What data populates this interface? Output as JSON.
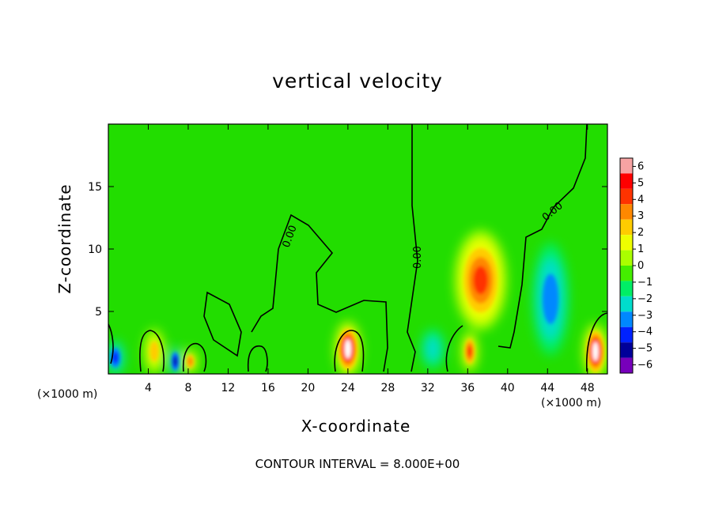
{
  "chart_data": {
    "type": "heatmap",
    "title": "vertical velocity",
    "xlabel": "X-coordinate",
    "ylabel": "Z-coordinate",
    "x_unit_left": "(×1000 m)",
    "x_unit_right": "(×1000 m)",
    "footer": "CONTOUR INTERVAL = 8.000E+00",
    "xlim": [
      0,
      50
    ],
    "ylim": [
      0,
      20
    ],
    "x_ticks": [
      4,
      8,
      12,
      16,
      20,
      24,
      28,
      32,
      36,
      40,
      44,
      48
    ],
    "y_ticks": [
      5,
      10,
      15
    ],
    "colorbar": {
      "ticks": [
        "6",
        "5",
        "4",
        "3",
        "2",
        "1",
        "0",
        "−1",
        "−2",
        "−3",
        "−4",
        "−5",
        "−6"
      ],
      "colors": [
        "#f7a3a3",
        "#ff0000",
        "#ff3300",
        "#ff8800",
        "#ffcc00",
        "#eeff00",
        "#aaff00",
        "#44ee00",
        "#00ee66",
        "#00ddcc",
        "#0088ff",
        "#0022ff",
        "#000099",
        "#7700bb"
      ]
    },
    "contour_level": "0.00",
    "features": [
      {
        "x": 24.0,
        "z": 2.0,
        "value": 6.5,
        "rx": 1.3,
        "rz": 2.2
      },
      {
        "x": 48.8,
        "z": 1.8,
        "value": 6.5,
        "rx": 1.2,
        "rz": 2.2
      },
      {
        "x": 37.3,
        "z": 7.5,
        "value": 4.5,
        "rx": 2.6,
        "rz": 4.0
      },
      {
        "x": 36.2,
        "z": 1.8,
        "value": 5.0,
        "rx": 0.8,
        "rz": 1.6
      },
      {
        "x": 4.6,
        "z": 1.8,
        "value": 3.0,
        "rx": 1.0,
        "rz": 1.8
      },
      {
        "x": 8.2,
        "z": 1.0,
        "value": 4.0,
        "rx": 0.7,
        "rz": 1.0
      },
      {
        "x": 6.7,
        "z": 1.0,
        "value": -4.5,
        "rx": 0.6,
        "rz": 1.2
      },
      {
        "x": 0.7,
        "z": 1.3,
        "value": -3.5,
        "rx": 0.9,
        "rz": 1.4
      },
      {
        "x": 44.3,
        "z": 6.0,
        "value": -3.0,
        "rx": 1.8,
        "rz": 4.5
      },
      {
        "x": 32.5,
        "z": 2.0,
        "value": -2.0,
        "rx": 1.2,
        "rz": 1.6
      }
    ]
  }
}
